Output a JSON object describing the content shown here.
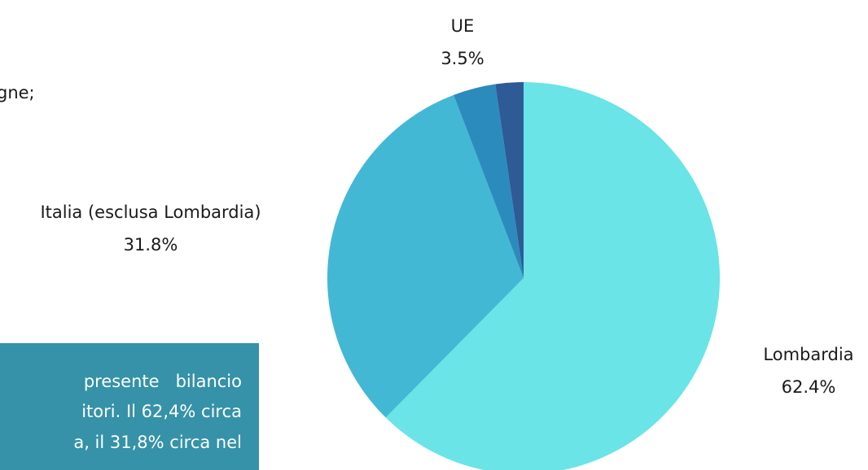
{
  "chart_data": {
    "type": "pie",
    "categories": [
      "Lombardia",
      "Italia (esclusa Lombardia)",
      "UE",
      null
    ],
    "values": [
      62.4,
      31.8,
      3.5,
      2.3
    ],
    "value_labels": [
      "62.4%",
      "31.8%",
      "3.5%",
      null
    ],
    "colors": [
      "#6ae4e6",
      "#43b8d5",
      "#2c8bbd",
      "#2e5a96"
    ]
  },
  "document": {
    "left_text": "gne;",
    "box_lines": [
      "presente   bilancio",
      "itori. Il 62,4% circa",
      "a, il 31,8% circa nel"
    ]
  }
}
